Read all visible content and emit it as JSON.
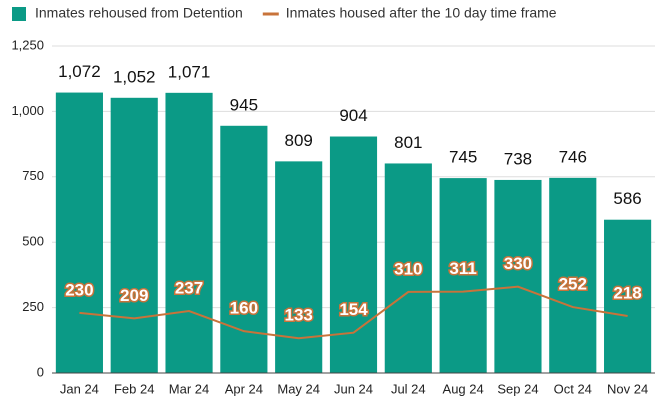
{
  "chart_data": {
    "type": "bar",
    "categories": [
      "Jan 24",
      "Feb 24",
      "Mar 24",
      "Apr 24",
      "May 24",
      "Jun 24",
      "Jul 24",
      "Aug 24",
      "Sep 24",
      "Oct 24",
      "Nov 24"
    ],
    "series": [
      {
        "name": "Inmates rehoused from Detention",
        "type": "bar",
        "color": "#0b9a86",
        "values": [
          1072,
          1052,
          1071,
          945,
          809,
          904,
          801,
          745,
          738,
          746,
          586
        ],
        "value_labels": [
          "1,072",
          "1,052",
          "1,071",
          "945",
          "809",
          "904",
          "801",
          "745",
          "738",
          "746",
          "586"
        ]
      },
      {
        "name": "Inmates housed after the 10 day time frame",
        "type": "line",
        "color": "#c8733a",
        "values": [
          230,
          209,
          237,
          160,
          133,
          154,
          310,
          311,
          330,
          252,
          218
        ]
      }
    ],
    "ylim": [
      0,
      1250
    ],
    "yticks": [
      0,
      250,
      500,
      750,
      {
        "value": 1000,
        "label": "1,000"
      },
      {
        "value": 1250,
        "label": "1,250"
      }
    ],
    "grid": true,
    "legend": "top"
  }
}
